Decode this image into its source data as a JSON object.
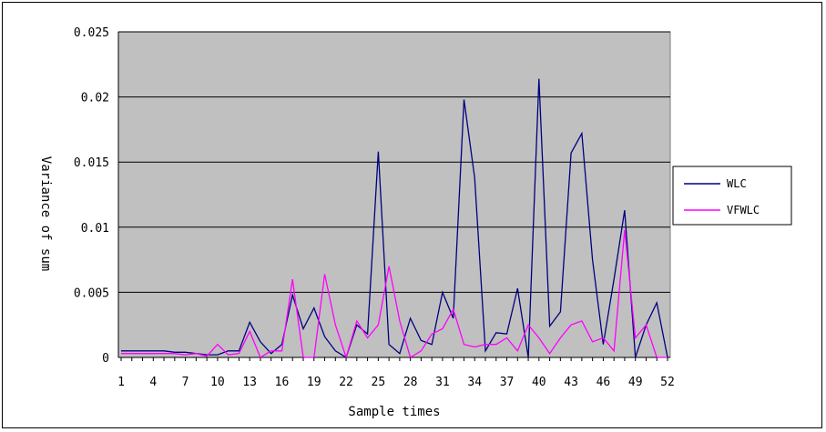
{
  "chart_data": {
    "type": "line",
    "title": "",
    "xlabel": "Sample times",
    "ylabel": "Variance of sum",
    "x": [
      1,
      2,
      3,
      4,
      5,
      6,
      7,
      8,
      9,
      10,
      11,
      12,
      13,
      14,
      15,
      16,
      17,
      18,
      19,
      20,
      21,
      22,
      23,
      24,
      25,
      26,
      27,
      28,
      29,
      30,
      31,
      32,
      33,
      34,
      35,
      36,
      37,
      38,
      39,
      40,
      41,
      42,
      43,
      44,
      45,
      46,
      47,
      48,
      49,
      50,
      51,
      52
    ],
    "x_tick_labels": [
      "1",
      "4",
      "7",
      "10",
      "13",
      "16",
      "19",
      "22",
      "25",
      "28",
      "31",
      "34",
      "37",
      "40",
      "43",
      "46",
      "49",
      "52"
    ],
    "ylim": [
      0,
      0.025
    ],
    "y_tick_labels": [
      "0",
      "0.005",
      "0.01",
      "0.015",
      "0.02",
      "0.025"
    ],
    "grid": true,
    "legend_position": "right",
    "plot_background": "#c0c0c0",
    "series": [
      {
        "name": "WLC",
        "color": "#000080",
        "values": [
          0.0005,
          0.0005,
          0.0005,
          0.0005,
          0.0005,
          0.0004,
          0.0004,
          0.0003,
          0.0002,
          0.0002,
          0.0005,
          0.0005,
          0.0027,
          0.0012,
          0.0003,
          0.001,
          0.0048,
          0.0022,
          0.0038,
          0.0016,
          0.0005,
          0.0,
          0.0025,
          0.0018,
          0.0158,
          0.001,
          0.0003,
          0.003,
          0.0013,
          0.001,
          0.005,
          0.003,
          0.0198,
          0.0138,
          0.0005,
          0.0019,
          0.0018,
          0.0053,
          0.0,
          0.0214,
          0.0024,
          0.0035,
          0.0157,
          0.0172,
          0.0075,
          0.001,
          0.006,
          0.0113,
          0.0,
          0.0025,
          0.0042,
          0.0
        ]
      },
      {
        "name": "VFWLC",
        "color": "#ff00ff",
        "values": [
          0.0003,
          0.0003,
          0.0003,
          0.0003,
          0.0003,
          0.0003,
          0.0002,
          0.0003,
          0.0001,
          0.001,
          0.0002,
          0.0003,
          0.002,
          0.0,
          0.0005,
          0.0005,
          0.006,
          0.0,
          0.0,
          0.0064,
          0.0025,
          0.0,
          0.0028,
          0.0015,
          0.0025,
          0.007,
          0.0028,
          0.0,
          0.0005,
          0.0018,
          0.0022,
          0.0037,
          0.001,
          0.0008,
          0.001,
          0.001,
          0.0015,
          0.0005,
          0.0025,
          0.0015,
          0.0003,
          0.0015,
          0.0025,
          0.0028,
          0.0012,
          0.0015,
          0.0005,
          0.0098,
          0.0015,
          0.0025,
          0.0,
          0.0
        ]
      }
    ]
  }
}
